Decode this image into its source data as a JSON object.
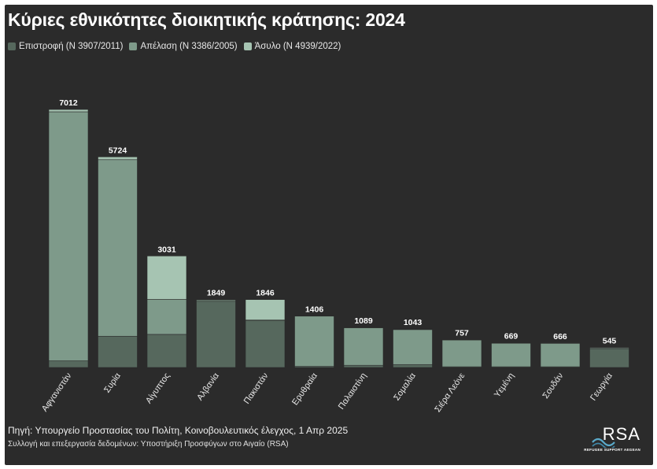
{
  "title": "Κύριες εθνικότητες διοικητικής κράτησης: 2024",
  "legend": [
    {
      "label": "Επιστροφή (N 3907/2011)",
      "color": "#56685d"
    },
    {
      "label": "Απέλαση (N 3386/2005)",
      "color": "#7e9a8a"
    },
    {
      "label": "Άσυλο (N 4939/2022)",
      "color": "#a6c4b2"
    }
  ],
  "source": "Πηγή: Υπουργείο Προστασίας του Πολίτη, Κοινοβουλευτικός έλεγχος, 1 Απρ 2025",
  "credit": "Συλλογή και επεξεργασία δεδομένων: Υποστήριξη Προσφύγων στο Αιγαίο (RSA)",
  "logo": {
    "text": "RSA",
    "subtext": "REFUGEE SUPPORT AEGEAN"
  },
  "chart_data": {
    "type": "bar",
    "stacked": true,
    "categories": [
      "Αφγανιστάν",
      "Συρία",
      "Αίγυπτος",
      "Αλβανία",
      "Πακιστάν",
      "Ερυθραία",
      "Παλαιστίνη",
      "Σομαλία",
      "Σιέρα Λεόνε",
      "Υεμένη",
      "Σουδάν",
      "Γεωργία"
    ],
    "totals": [
      7012,
      5724,
      3031,
      1849,
      1846,
      1406,
      1089,
      1043,
      757,
      669,
      666,
      545
    ],
    "series": [
      {
        "name": "Επιστροφή (N 3907/2011)",
        "values": [
          180,
          850,
          900,
          1800,
          1280,
          30,
          60,
          80,
          20,
          20,
          20,
          500
        ]
      },
      {
        "name": "Απέλαση (N 3386/2005)",
        "values": [
          6770,
          4800,
          950,
          40,
          10,
          1370,
          1020,
          950,
          730,
          640,
          640,
          30
        ]
      },
      {
        "name": "Άσυλο (N 4939/2022)",
        "values": [
          62,
          74,
          1181,
          9,
          556,
          6,
          9,
          13,
          7,
          9,
          6,
          15
        ]
      }
    ],
    "ylim": [
      0,
      7100
    ],
    "colors": [
      "#56685d",
      "#7e9a8a",
      "#a6c4b2"
    ]
  }
}
